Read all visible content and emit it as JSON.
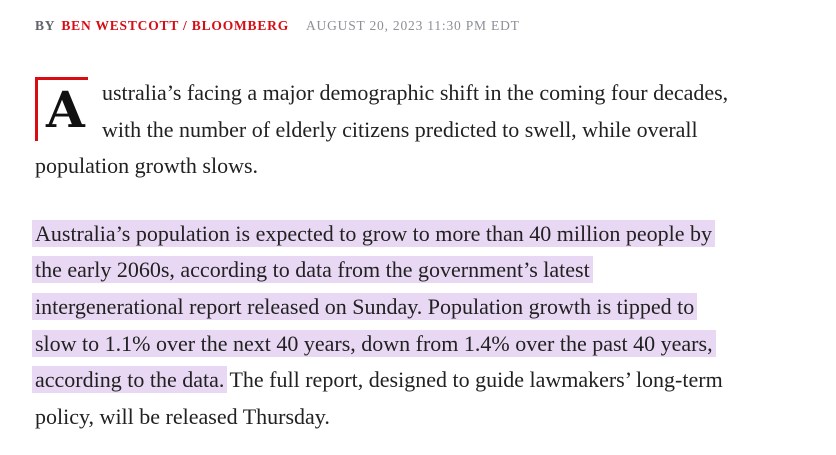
{
  "byline": {
    "prefix": "BY",
    "author": "BEN WESTCOTT / BLOOMBERG",
    "timestamp": "AUGUST 20, 2023 11:30 PM EDT"
  },
  "article": {
    "drop_cap": "A",
    "paragraph1_lines": [
      "ustralia’s facing a major demographic shift in the coming four decades,",
      "with the number of elderly citizens predicted to swell, while overall",
      "population growth slows."
    ],
    "paragraph2_highlighted_lines": [
      "Australia’s population is expected to grow to more than 40 million people by",
      "the early 2060s, according to data from the government’s latest",
      "intergenerational report released on Sunday. Population growth is tipped to",
      "slow to 1.1% over the next 40 years, down from 1.4% over the past 40 years,",
      "according to the data."
    ],
    "paragraph2_plain_lines": [
      " The full report, designed to guide lawmakers’ long-term",
      "policy, will be released Thursday."
    ]
  },
  "colors": {
    "accent_red": "#d80c13",
    "highlight_lavender": "#e9d8f3",
    "body_text": "#212121",
    "byline_prefix_gray": "#5f6369",
    "timestamp_gray": "#8a9096"
  }
}
